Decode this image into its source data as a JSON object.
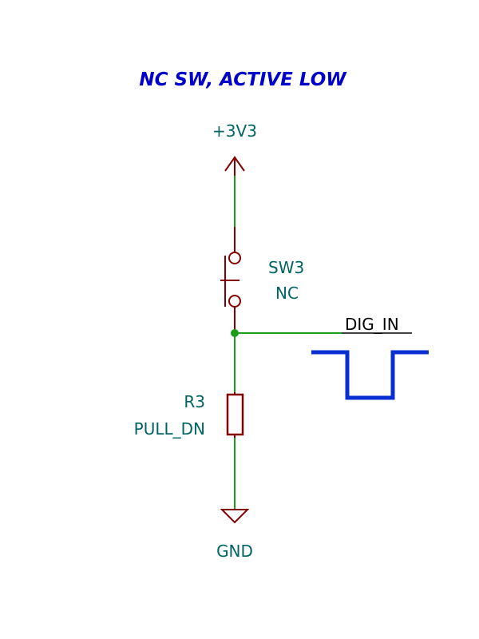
{
  "title": "NC SW, ACTIVE LOW",
  "power": {
    "label": "+3V3"
  },
  "switch": {
    "ref": "SW3",
    "value": "NC"
  },
  "net_label": "DIG_IN",
  "resistor": {
    "ref": "R3",
    "value": "PULL_DN"
  },
  "ground": {
    "label": "GND"
  },
  "colors": {
    "wire": "#1a9e1a",
    "symbol": "#840000",
    "text": "#006464",
    "title": "#0000c8",
    "waveform": "#0a2fd0",
    "junction": "#1a9e1a",
    "net_label": "#000000"
  }
}
